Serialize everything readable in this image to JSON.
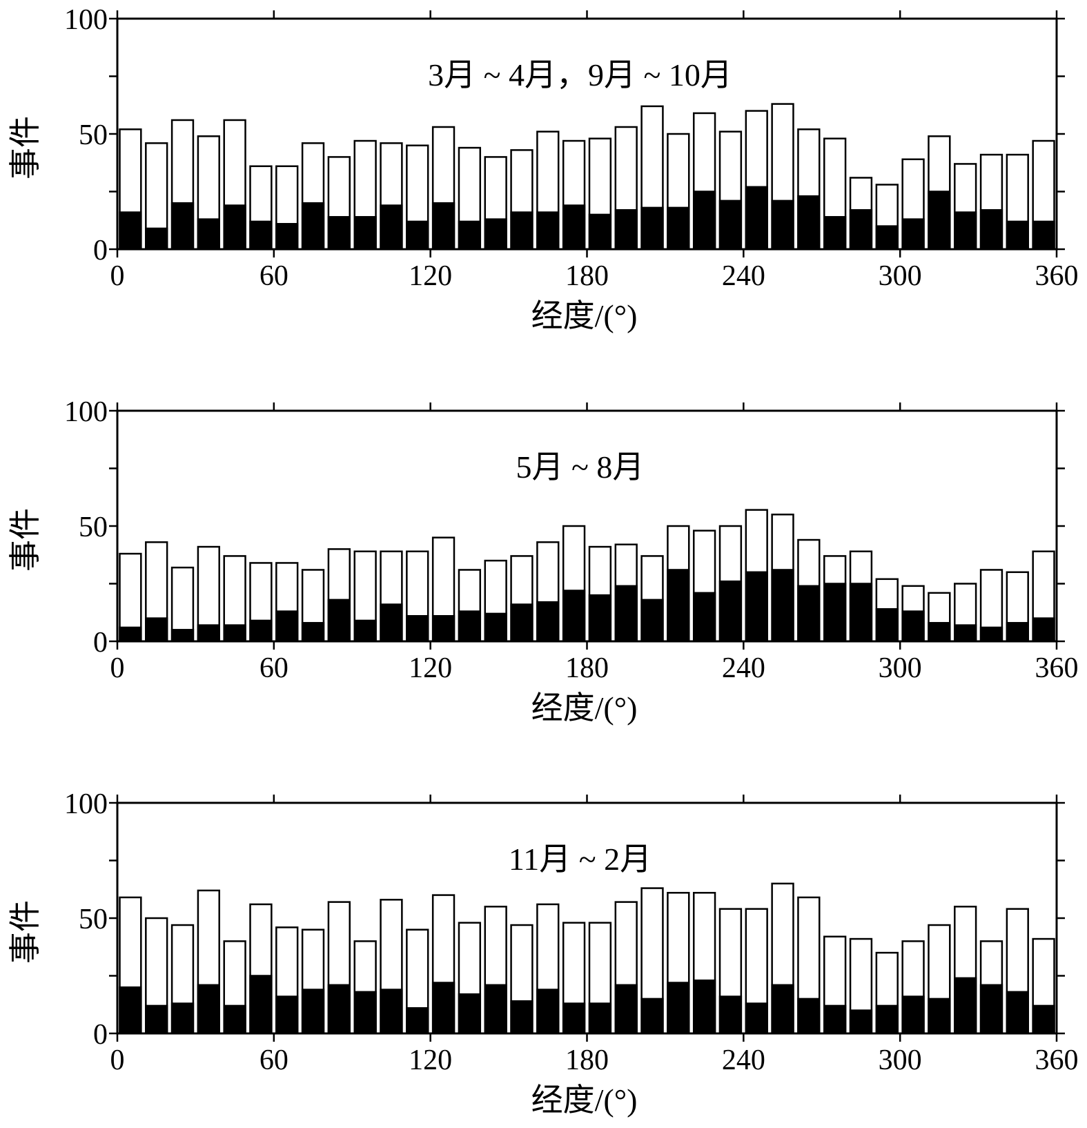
{
  "colors": {
    "total_bar_fill": "#ffffff",
    "subset_bar_fill": "#000000",
    "frame": "#000000"
  },
  "chart_data": [
    {
      "type": "bar",
      "title": "3月 ~ 4月，9月 ~ 10月",
      "xlabel": "经度/(°)",
      "ylabel": "事件",
      "xlim": [
        0,
        360
      ],
      "ylim": [
        0,
        100
      ],
      "xticks": [
        0,
        60,
        120,
        180,
        240,
        300,
        360
      ],
      "yticks": [
        0,
        50,
        100
      ],
      "bin_width": 10,
      "x": [
        5,
        15,
        25,
        35,
        45,
        55,
        65,
        75,
        85,
        95,
        105,
        115,
        125,
        135,
        145,
        155,
        165,
        175,
        185,
        195,
        205,
        215,
        225,
        235,
        245,
        255,
        265,
        275,
        285,
        295,
        305,
        315,
        325,
        335,
        345,
        355
      ],
      "series": [
        {
          "values": [
            52,
            46,
            56,
            49,
            56,
            36,
            36,
            46,
            40,
            47,
            46,
            45,
            53,
            44,
            40,
            43,
            51,
            47,
            48,
            53,
            62,
            50,
            59,
            51,
            60,
            63,
            52,
            48,
            31,
            28,
            39,
            49,
            37,
            41,
            41,
            47
          ]
        },
        {
          "values": [
            16,
            9,
            20,
            13,
            19,
            12,
            11,
            20,
            14,
            14,
            19,
            12,
            20,
            12,
            13,
            16,
            16,
            19,
            15,
            17,
            18,
            18,
            25,
            21,
            27,
            21,
            23,
            14,
            17,
            10,
            13,
            25,
            16,
            17,
            12,
            12
          ]
        }
      ]
    },
    {
      "type": "bar",
      "title": "5月 ~ 8月",
      "xlabel": "经度/(°)",
      "ylabel": "事件",
      "xlim": [
        0,
        360
      ],
      "ylim": [
        0,
        100
      ],
      "xticks": [
        0,
        60,
        120,
        180,
        240,
        300,
        360
      ],
      "yticks": [
        0,
        50,
        100
      ],
      "bin_width": 10,
      "x": [
        5,
        15,
        25,
        35,
        45,
        55,
        65,
        75,
        85,
        95,
        105,
        115,
        125,
        135,
        145,
        155,
        165,
        175,
        185,
        195,
        205,
        215,
        225,
        235,
        245,
        255,
        265,
        275,
        285,
        295,
        305,
        315,
        325,
        335,
        345,
        355
      ],
      "series": [
        {
          "values": [
            38,
            43,
            32,
            41,
            37,
            34,
            34,
            31,
            40,
            39,
            39,
            39,
            45,
            31,
            35,
            37,
            43,
            50,
            41,
            42,
            37,
            50,
            48,
            50,
            57,
            55,
            44,
            37,
            39,
            27,
            24,
            21,
            25,
            31,
            30,
            39
          ]
        },
        {
          "values": [
            6,
            10,
            5,
            7,
            7,
            9,
            13,
            8,
            18,
            9,
            16,
            11,
            11,
            13,
            12,
            16,
            17,
            22,
            20,
            24,
            18,
            31,
            21,
            26,
            30,
            31,
            24,
            25,
            25,
            14,
            13,
            8,
            7,
            6,
            8,
            10
          ]
        }
      ]
    },
    {
      "type": "bar",
      "title": "11月 ~ 2月",
      "xlabel": "经度/(°)",
      "ylabel": "事件",
      "xlim": [
        0,
        360
      ],
      "ylim": [
        0,
        100
      ],
      "xticks": [
        0,
        60,
        120,
        180,
        240,
        300,
        360
      ],
      "yticks": [
        0,
        50,
        100
      ],
      "bin_width": 10,
      "x": [
        5,
        15,
        25,
        35,
        45,
        55,
        65,
        75,
        85,
        95,
        105,
        115,
        125,
        135,
        145,
        155,
        165,
        175,
        185,
        195,
        205,
        215,
        225,
        235,
        245,
        255,
        265,
        275,
        285,
        295,
        305,
        315,
        325,
        335,
        345,
        355
      ],
      "series": [
        {
          "values": [
            59,
            50,
            47,
            62,
            40,
            56,
            46,
            45,
            57,
            40,
            58,
            45,
            60,
            48,
            55,
            47,
            56,
            48,
            48,
            57,
            63,
            61,
            61,
            54,
            54,
            65,
            59,
            42,
            41,
            35,
            40,
            47,
            55,
            40,
            54,
            41
          ]
        },
        {
          "values": [
            20,
            12,
            13,
            21,
            12,
            25,
            16,
            19,
            21,
            18,
            19,
            11,
            22,
            17,
            21,
            14,
            19,
            13,
            13,
            21,
            15,
            22,
            23,
            16,
            13,
            21,
            15,
            12,
            10,
            12,
            16,
            15,
            24,
            21,
            18,
            12
          ]
        }
      ]
    }
  ]
}
